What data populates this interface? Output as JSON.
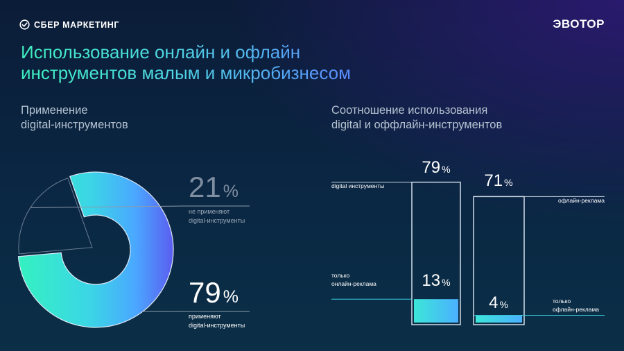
{
  "header": {
    "left_logo": {
      "icon": "check-circle-icon",
      "text": "СБЕР МАРКЕТИНГ"
    },
    "right_logo": "ЭВОТОР"
  },
  "title_lines": [
    "Использование онлайн и офлайн",
    "инструментов малым и микробизнесом"
  ],
  "colors": {
    "accent_teal": "#3ef0c0",
    "accent_cyan": "#3cd6e8",
    "accent_blue": "#4aa8ff",
    "accent_violet": "#5b5df0",
    "text_muted": "#8fa0b3"
  },
  "chart_data": [
    {
      "type": "pie",
      "title_lines": [
        "Применение",
        "digital-инструментов"
      ],
      "slices": [
        {
          "value": 21,
          "pct_text": "21",
          "unit": "%",
          "label_lines": [
            "не применяют",
            "digital-инструменты"
          ]
        },
        {
          "value": 79,
          "pct_text": "79",
          "unit": "%",
          "label_lines": [
            "применяют",
            "digital-инструменты"
          ]
        }
      ]
    },
    {
      "type": "bar",
      "title_lines": [
        "Соотношение использования",
        "digital и оффлайн-инструментов"
      ],
      "bars": [
        {
          "total": 79,
          "total_text": "79",
          "total_label": "digital инструменты",
          "part": 13,
          "part_text": "13",
          "part_label_lines": [
            "только",
            "онлайн-реклама"
          ]
        },
        {
          "total": 71,
          "total_text": "71",
          "total_label": "офлайн-реклама",
          "part": 4,
          "part_text": "4",
          "part_label_lines": [
            "только",
            "офлайн-реклама"
          ]
        }
      ],
      "unit": "%"
    }
  ]
}
